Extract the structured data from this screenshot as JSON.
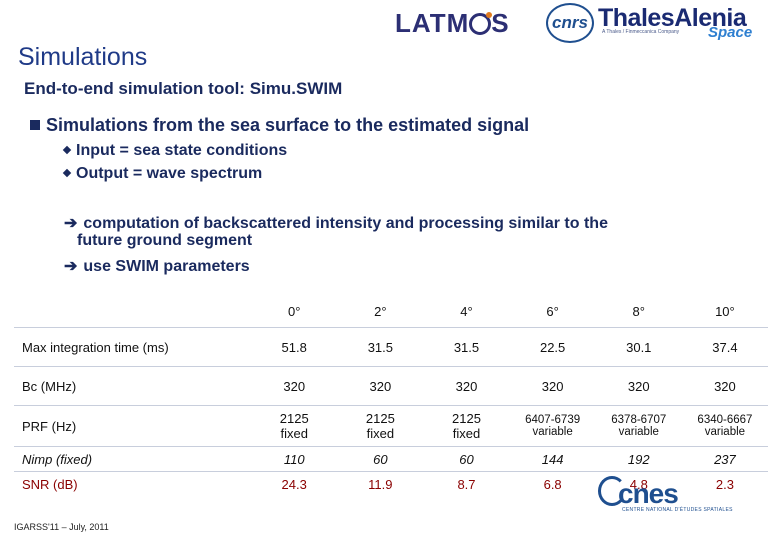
{
  "header": {
    "logo_latmos_left": "LATM",
    "logo_latmos_right": "S",
    "logo_cnrs": "cnrs",
    "logo_thales": "ThalesAlenia",
    "logo_thales_sub": "A Thales / Finmeccanica Company",
    "logo_space": "Space"
  },
  "slide": {
    "title": "Simulations",
    "subtitle": "End-to-end simulation tool: Simu.SWIM",
    "bullet": "Simulations from the sea surface to the estimated signal",
    "sub_bullets": [
      "Input = sea state conditions",
      "Output = wave spectrum"
    ],
    "arrow_items": [
      "computation of backscattered intensity and processing similar to the",
      "future ground segment",
      "use SWIM parameters"
    ]
  },
  "table": {
    "headers": [
      "0°",
      "2°",
      "4°",
      "6°",
      "8°",
      "10°"
    ],
    "rows": [
      {
        "label": "Max integration time (ms)",
        "values": [
          "51.8",
          "31.5",
          "31.5",
          "22.5",
          "30.1",
          "37.4"
        ]
      },
      {
        "label": "Bc (MHz)",
        "values": [
          "320",
          "320",
          "320",
          "320",
          "320",
          "320"
        ]
      },
      {
        "label": "PRF (Hz)",
        "values": [
          [
            "2125",
            "fixed"
          ],
          [
            "2125",
            "fixed"
          ],
          [
            "2125",
            "fixed"
          ],
          [
            "6407-6739",
            "variable"
          ],
          [
            "6378-6707",
            "variable"
          ],
          [
            "6340-6667",
            "variable"
          ]
        ]
      },
      {
        "label": "Nimp (fixed)",
        "values": [
          "110",
          "60",
          "60",
          "144",
          "192",
          "237"
        ]
      },
      {
        "label": "SNR (dB)",
        "values": [
          "24.3",
          "11.9",
          "8.7",
          "6.8",
          "4.8",
          "2.3"
        ]
      }
    ]
  },
  "footer": {
    "conference": "IGARSS'11 – July, 2011",
    "cnes_logo": "cnes",
    "cnes_sub": "CENTRE NATIONAL D'ÉTUDES SPATIALES"
  }
}
